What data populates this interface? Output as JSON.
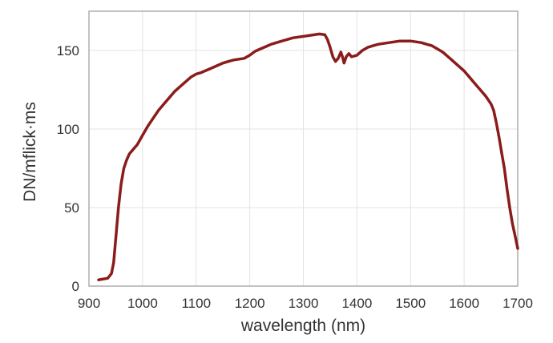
{
  "chart_data": {
    "type": "line",
    "title": "",
    "xlabel": "wavelength (nm)",
    "ylabel": "DN/mflick·ms",
    "xlim": [
      900,
      1700
    ],
    "ylim": [
      0,
      175
    ],
    "xticks": [
      900,
      1000,
      1100,
      1200,
      1300,
      1400,
      1500,
      1600,
      1700
    ],
    "yticks": [
      0,
      50,
      100,
      150
    ],
    "xtick_labels": [
      "900",
      "1000",
      "1100",
      "1200",
      "1300",
      "1400",
      "1500",
      "1600",
      "1700"
    ],
    "ytick_labels": [
      "0",
      "50",
      "100",
      "150"
    ],
    "grid": true,
    "legend": "none",
    "colors": {
      "line": "#8b1c1c",
      "grid": "#e3e3e3",
      "axis": "#9a9a9a"
    },
    "series": [
      {
        "x": [
          918,
          935,
          942,
          946,
          950,
          955,
          960,
          965,
          970,
          975,
          980,
          985,
          990,
          1000,
          1010,
          1020,
          1030,
          1040,
          1050,
          1060,
          1070,
          1080,
          1090,
          1100,
          1110,
          1120,
          1130,
          1140,
          1150,
          1160,
          1170,
          1180,
          1190,
          1200,
          1210,
          1220,
          1230,
          1240,
          1250,
          1260,
          1270,
          1280,
          1290,
          1300,
          1310,
          1320,
          1330,
          1340,
          1345,
          1350,
          1355,
          1360,
          1365,
          1370,
          1373,
          1376,
          1380,
          1385,
          1390,
          1400,
          1410,
          1420,
          1430,
          1440,
          1450,
          1460,
          1470,
          1480,
          1490,
          1500,
          1510,
          1520,
          1530,
          1540,
          1550,
          1560,
          1570,
          1580,
          1590,
          1600,
          1610,
          1620,
          1630,
          1640,
          1650,
          1655,
          1660,
          1665,
          1670,
          1675,
          1680,
          1685,
          1690,
          1695,
          1700
        ],
        "y": [
          4,
          5,
          8,
          15,
          30,
          50,
          65,
          75,
          80,
          84,
          86,
          88,
          90,
          96,
          102,
          107,
          112,
          116,
          120,
          124,
          127,
          130,
          133,
          135,
          136,
          137.5,
          139,
          140.5,
          142,
          143,
          144,
          144.5,
          145,
          147,
          149.5,
          151,
          152.5,
          154,
          155,
          156,
          157,
          158,
          158.5,
          159,
          159.5,
          160,
          160.5,
          160,
          157,
          152,
          146,
          143,
          145,
          149,
          146,
          142,
          146,
          148,
          146,
          147,
          150,
          152,
          153,
          154,
          154.5,
          155,
          155.5,
          156,
          156,
          156,
          155.5,
          155,
          154,
          153,
          151,
          149,
          146,
          143,
          140,
          137,
          133,
          129,
          125,
          121,
          116,
          112,
          104,
          95,
          85,
          75,
          62,
          50,
          40,
          32,
          24
        ]
      }
    ]
  }
}
